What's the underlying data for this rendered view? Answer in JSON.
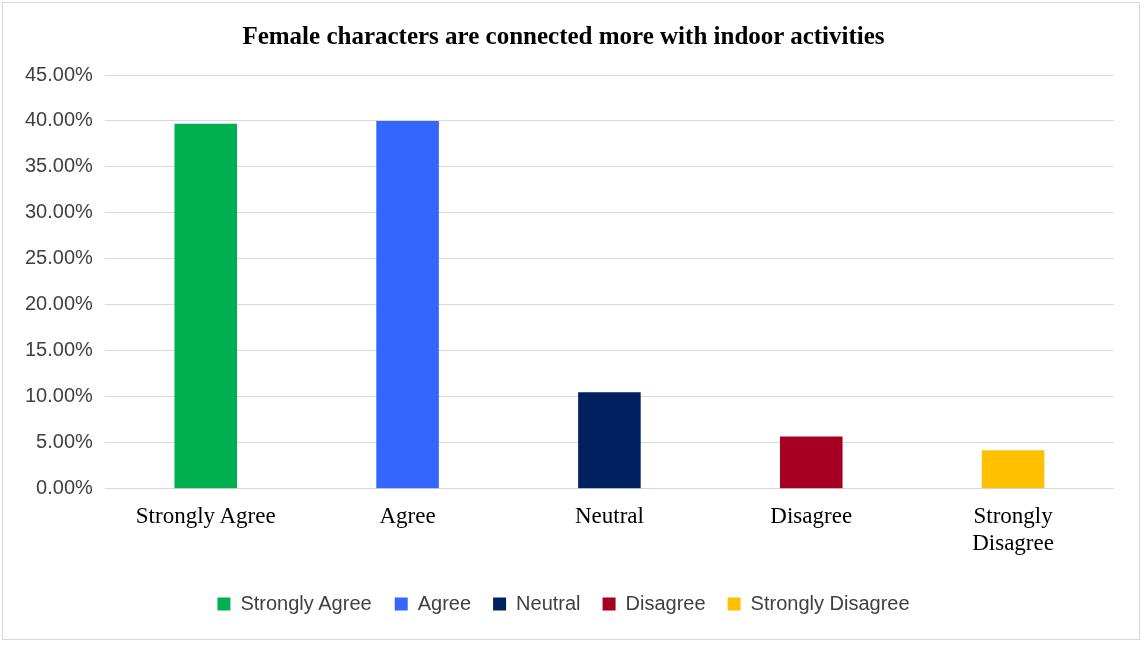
{
  "chart_data": {
    "type": "bar",
    "title": "Female characters are connected more with indoor activities",
    "categories": [
      "Strongly Agree",
      "Agree",
      "Neutral",
      "Disagree",
      "Strongly Disagree"
    ],
    "series": [
      {
        "name": "Strongly Agree",
        "color": "#00b050",
        "values": [
          39.7,
          null,
          null,
          null,
          null
        ]
      },
      {
        "name": "Agree",
        "color": "#3366ff",
        "values": [
          null,
          40.0,
          null,
          null,
          null
        ]
      },
      {
        "name": "Neutral",
        "color": "#002060",
        "values": [
          null,
          null,
          10.5,
          null,
          null
        ]
      },
      {
        "name": "Disagree",
        "color": "#a50021",
        "values": [
          null,
          null,
          null,
          5.7,
          null
        ]
      },
      {
        "name": "Strongly Disagree",
        "color": "#ffc000",
        "values": [
          null,
          null,
          null,
          null,
          4.2
        ]
      }
    ],
    "ylim": [
      0,
      45
    ],
    "yticks": [
      {
        "value": 0,
        "label": "0.00%"
      },
      {
        "value": 5,
        "label": "5.00%"
      },
      {
        "value": 10,
        "label": "10.00%"
      },
      {
        "value": 15,
        "label": "15.00%"
      },
      {
        "value": 20,
        "label": "20.00%"
      },
      {
        "value": 25,
        "label": "25.00%"
      },
      {
        "value": 30,
        "label": "30.00%"
      },
      {
        "value": 35,
        "label": "35.00%"
      },
      {
        "value": 40,
        "label": "40.00%"
      },
      {
        "value": 45,
        "label": "45.00%"
      }
    ],
    "grid": "y",
    "legend": "bottom"
  }
}
